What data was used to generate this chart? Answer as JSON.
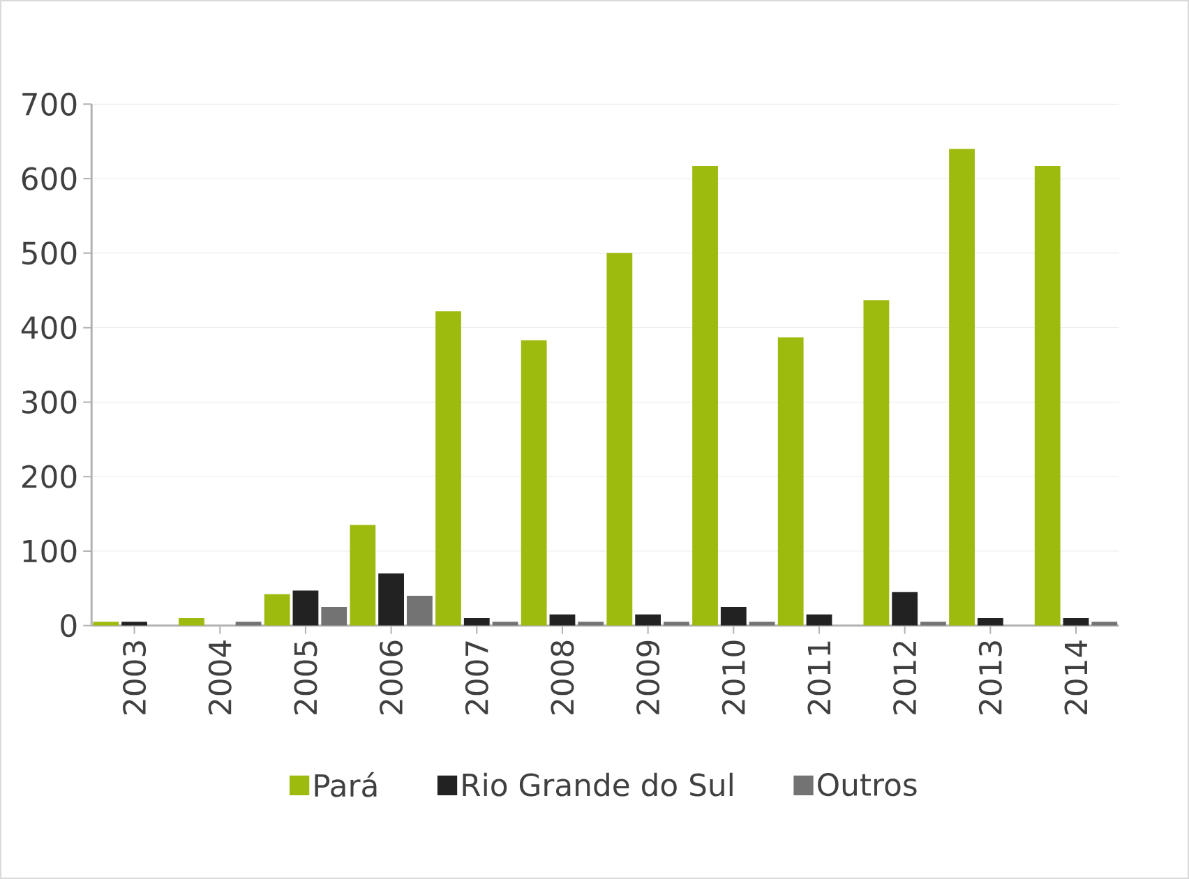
{
  "chart_data": {
    "type": "bar",
    "categories": [
      "2003",
      "2004",
      "2005",
      "2006",
      "2007",
      "2008",
      "2009",
      "2010",
      "2011",
      "2012",
      "2013",
      "2014"
    ],
    "series": [
      {
        "name": "Pará",
        "color": "#9dbb0f",
        "values": [
          5,
          10,
          42,
          135,
          422,
          383,
          500,
          617,
          387,
          437,
          640,
          617
        ]
      },
      {
        "name": "Rio Grande do Sul",
        "color": "#222222",
        "values": [
          5,
          0,
          47,
          70,
          10,
          15,
          15,
          25,
          15,
          45,
          10,
          10
        ]
      },
      {
        "name": "Outros",
        "color": "#737373",
        "values": [
          0,
          5,
          25,
          40,
          5,
          5,
          5,
          5,
          0,
          5,
          0,
          5
        ]
      }
    ],
    "ylim": [
      0,
      700
    ],
    "yticks": [
      0,
      100,
      200,
      300,
      400,
      500,
      600,
      700
    ],
    "grid": "y",
    "legend": "bottom"
  }
}
